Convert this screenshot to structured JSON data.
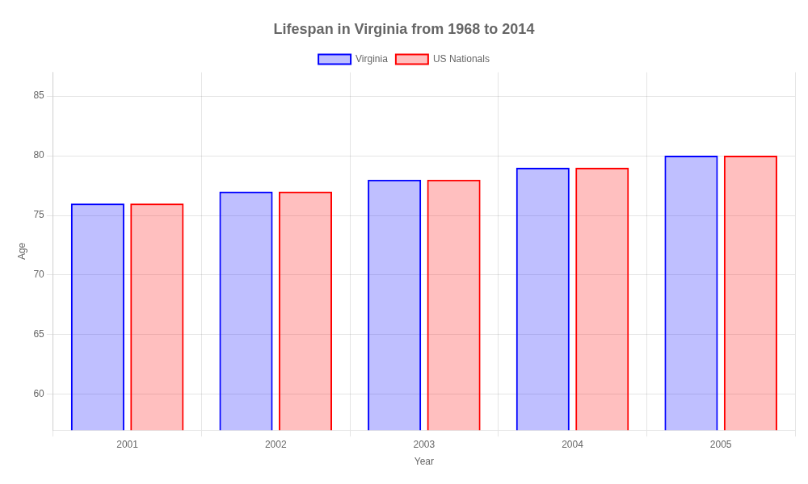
{
  "chart_data": {
    "type": "bar",
    "title": "Lifespan in Virginia from 1968 to 2014",
    "x_label": "Year",
    "y_label": "Age",
    "categories": [
      "2001",
      "2002",
      "2003",
      "2004",
      "2005"
    ],
    "series": [
      {
        "name": "Virginia",
        "color": "#0000ff",
        "values": [
          76,
          77,
          78,
          79,
          80
        ]
      },
      {
        "name": "US Nationals",
        "color": "#ff0000",
        "values": [
          76,
          77,
          78,
          79,
          80
        ]
      }
    ],
    "ylim": [
      57,
      87
    ],
    "yticks": [
      60,
      65,
      70,
      75,
      80,
      85
    ],
    "grid": true,
    "legend": "top"
  }
}
